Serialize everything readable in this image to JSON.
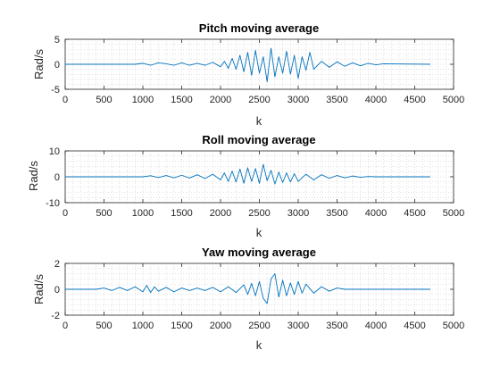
{
  "colors": {
    "series": "#0072BD",
    "axis": "#262626",
    "grid": "#9a9a9a",
    "background": "#ffffff"
  },
  "chart_data": [
    {
      "type": "line",
      "title": "Pitch moving average",
      "xlabel": "k",
      "ylabel": "Rad/s",
      "xlim": [
        0,
        5000
      ],
      "ylim": [
        -5,
        5
      ],
      "xticks": [
        0,
        500,
        1000,
        1500,
        2000,
        2500,
        3000,
        3500,
        4000,
        4500,
        5000
      ],
      "yticks": [
        -5,
        0,
        5
      ],
      "grid": "minor dotted",
      "series": [
        {
          "x": [
            0,
            900,
            1000,
            1100,
            1200,
            1300,
            1400,
            1500,
            1600,
            1700,
            1800,
            1900,
            2000,
            2050,
            2100,
            2150,
            2200,
            2250,
            2300,
            2350,
            2400,
            2450,
            2500,
            2550,
            2600,
            2650,
            2700,
            2750,
            2800,
            2850,
            2900,
            2950,
            3000,
            3050,
            3100,
            3150,
            3200,
            3300,
            3400,
            3500,
            3600,
            3700,
            3800,
            3900,
            4000,
            4100,
            4700
          ],
          "y": [
            0,
            0,
            0.2,
            -0.2,
            0.3,
            0.1,
            -0.2,
            0.3,
            -0.2,
            0.2,
            -0.2,
            0.4,
            -0.5,
            0.6,
            -0.8,
            1.2,
            -1.0,
            1.8,
            -1.5,
            2.4,
            -2.2,
            2.8,
            -1.8,
            1.5,
            -3.5,
            3.2,
            -2.5,
            1.5,
            -1.8,
            2.6,
            -2.0,
            1.8,
            -2.8,
            1.5,
            -1.2,
            2.4,
            -1.0,
            0.6,
            -0.6,
            0.5,
            -0.4,
            0.3,
            -0.3,
            0.2,
            -0.1,
            0.1,
            0
          ]
        }
      ]
    },
    {
      "type": "line",
      "title": "Roll moving average",
      "xlabel": "k",
      "ylabel": "Rad/s",
      "xlim": [
        0,
        5000
      ],
      "ylim": [
        -10,
        10
      ],
      "xticks": [
        0,
        500,
        1000,
        1500,
        2000,
        2500,
        3000,
        3500,
        4000,
        4500,
        5000
      ],
      "yticks": [
        -10,
        0,
        10
      ],
      "grid": "minor dotted",
      "series": [
        {
          "x": [
            0,
            1000,
            1100,
            1200,
            1300,
            1400,
            1500,
            1600,
            1700,
            1800,
            1900,
            2000,
            2050,
            2100,
            2150,
            2200,
            2250,
            2300,
            2350,
            2400,
            2450,
            2500,
            2550,
            2600,
            2650,
            2700,
            2750,
            2800,
            2850,
            2900,
            2950,
            3000,
            3100,
            3200,
            3300,
            3400,
            3500,
            3600,
            3700,
            3800,
            3900,
            4000,
            4700
          ],
          "y": [
            0,
            0,
            0.4,
            -0.3,
            0.5,
            -0.4,
            0.6,
            -0.5,
            0.8,
            -0.7,
            1.0,
            -1.2,
            1.5,
            -1.8,
            2.2,
            -2.0,
            3.0,
            -2.5,
            3.5,
            -1.8,
            3.2,
            -2.5,
            4.8,
            -1.5,
            2.5,
            -2.8,
            1.8,
            -2.2,
            1.5,
            -2.0,
            1.2,
            -1.8,
            1.0,
            -1.2,
            0.8,
            -0.6,
            0.5,
            -0.4,
            0.3,
            -0.2,
            0.1,
            0,
            0
          ]
        }
      ]
    },
    {
      "type": "line",
      "title": "Yaw moving average",
      "xlabel": "k",
      "ylabel": "Rad/s",
      "xlim": [
        0,
        5000
      ],
      "ylim": [
        -2,
        2
      ],
      "xticks": [
        0,
        500,
        1000,
        1500,
        2000,
        2500,
        3000,
        3500,
        4000,
        4500,
        5000
      ],
      "yticks": [
        -2,
        0,
        2
      ],
      "grid": "minor dotted",
      "series": [
        {
          "x": [
            0,
            400,
            500,
            600,
            700,
            800,
            900,
            1000,
            1050,
            1100,
            1150,
            1200,
            1300,
            1400,
            1500,
            1600,
            1700,
            1800,
            1900,
            2000,
            2100,
            2200,
            2300,
            2350,
            2400,
            2450,
            2500,
            2550,
            2600,
            2650,
            2700,
            2750,
            2800,
            2850,
            2900,
            2950,
            3000,
            3050,
            3100,
            3200,
            3300,
            3400,
            3500,
            3600,
            4700
          ],
          "y": [
            0,
            0,
            0.1,
            -0.1,
            0.15,
            -0.1,
            0.2,
            -0.2,
            0.3,
            -0.25,
            0.2,
            -0.15,
            0.15,
            -0.2,
            0.1,
            -0.1,
            0.1,
            -0.1,
            0.15,
            -0.2,
            0.2,
            -0.25,
            0.35,
            -0.4,
            0.45,
            -0.5,
            0.6,
            -0.7,
            -1.1,
            0.8,
            1.2,
            -0.6,
            0.7,
            -0.5,
            0.5,
            -0.4,
            0.6,
            -0.3,
            0.4,
            -0.3,
            0.2,
            -0.15,
            0.1,
            0,
            0
          ]
        }
      ]
    }
  ]
}
